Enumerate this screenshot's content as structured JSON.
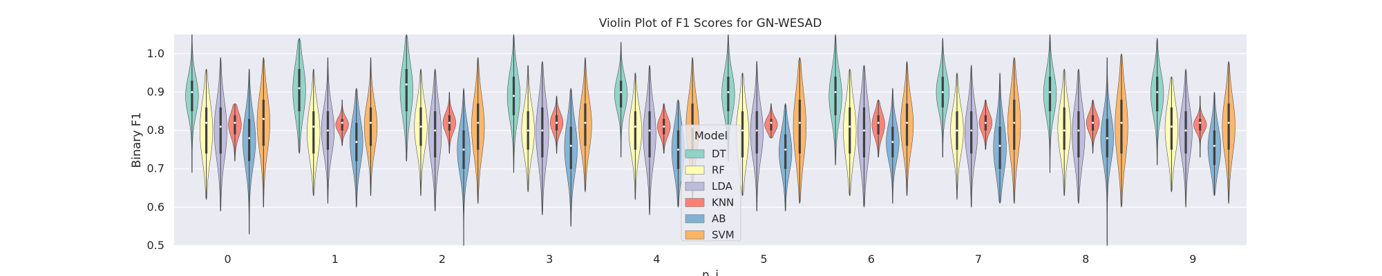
{
  "chart_data": {
    "type": "violin",
    "title": "Violin Plot of F1 Scores for GN-WESAD",
    "xlabel": "n_i",
    "ylabel": "Binary F1",
    "ylim": [
      0.5,
      1.05
    ],
    "yticks": [
      0.5,
      0.6,
      0.7,
      0.8,
      0.9,
      1.0
    ],
    "yticklabels": [
      "0.5",
      "0.6",
      "0.7",
      "0.8",
      "0.9",
      "1.0"
    ],
    "categories": [
      "0",
      "1",
      "2",
      "3",
      "4",
      "5",
      "6",
      "7",
      "8",
      "9"
    ],
    "grid": true,
    "legend": {
      "title": "Model",
      "placement": "center"
    },
    "series": [
      {
        "name": "DT",
        "color": "#8dd3c7",
        "values": [
          {
            "min": 0.69,
            "q1": 0.85,
            "median": 0.9,
            "q3": 0.93,
            "max": 1.05
          },
          {
            "min": 0.74,
            "q1": 0.85,
            "median": 0.91,
            "q3": 0.96,
            "max": 1.04
          },
          {
            "min": 0.72,
            "q1": 0.85,
            "median": 0.92,
            "q3": 0.96,
            "max": 1.05
          },
          {
            "min": 0.69,
            "q1": 0.84,
            "median": 0.89,
            "q3": 0.94,
            "max": 1.05
          },
          {
            "min": 0.73,
            "q1": 0.86,
            "median": 0.9,
            "q3": 0.93,
            "max": 1.03
          },
          {
            "min": 0.72,
            "q1": 0.85,
            "median": 0.9,
            "q3": 0.94,
            "max": 1.05
          },
          {
            "min": 0.71,
            "q1": 0.84,
            "median": 0.9,
            "q3": 0.94,
            "max": 1.05
          },
          {
            "min": 0.73,
            "q1": 0.86,
            "median": 0.9,
            "q3": 0.94,
            "max": 1.04
          },
          {
            "min": 0.69,
            "q1": 0.85,
            "median": 0.9,
            "q3": 0.94,
            "max": 1.05
          },
          {
            "min": 0.71,
            "q1": 0.85,
            "median": 0.9,
            "q3": 0.94,
            "max": 1.04
          }
        ]
      },
      {
        "name": "RF",
        "color": "#ffffb3",
        "values": [
          {
            "min": 0.62,
            "q1": 0.74,
            "median": 0.82,
            "q3": 0.86,
            "max": 0.96
          },
          {
            "min": 0.63,
            "q1": 0.74,
            "median": 0.81,
            "q3": 0.85,
            "max": 0.96
          },
          {
            "min": 0.63,
            "q1": 0.76,
            "median": 0.81,
            "q3": 0.86,
            "max": 0.96
          },
          {
            "min": 0.64,
            "q1": 0.75,
            "median": 0.8,
            "q3": 0.85,
            "max": 0.97
          },
          {
            "min": 0.62,
            "q1": 0.75,
            "median": 0.81,
            "q3": 0.85,
            "max": 0.95
          },
          {
            "min": 0.63,
            "q1": 0.73,
            "median": 0.8,
            "q3": 0.85,
            "max": 0.95
          },
          {
            "min": 0.63,
            "q1": 0.74,
            "median": 0.81,
            "q3": 0.86,
            "max": 0.96
          },
          {
            "min": 0.62,
            "q1": 0.75,
            "median": 0.8,
            "q3": 0.85,
            "max": 0.95
          },
          {
            "min": 0.63,
            "q1": 0.75,
            "median": 0.8,
            "q3": 0.86,
            "max": 0.96
          },
          {
            "min": 0.64,
            "q1": 0.75,
            "median": 0.81,
            "q3": 0.86,
            "max": 0.94
          }
        ]
      },
      {
        "name": "LDA",
        "color": "#bebada",
        "values": [
          {
            "min": 0.59,
            "q1": 0.74,
            "median": 0.81,
            "q3": 0.86,
            "max": 0.99
          },
          {
            "min": 0.61,
            "q1": 0.75,
            "median": 0.8,
            "q3": 0.85,
            "max": 0.99
          },
          {
            "min": 0.59,
            "q1": 0.73,
            "median": 0.8,
            "q3": 0.85,
            "max": 0.96
          },
          {
            "min": 0.58,
            "q1": 0.73,
            "median": 0.8,
            "q3": 0.86,
            "max": 0.98
          },
          {
            "min": 0.58,
            "q1": 0.73,
            "median": 0.8,
            "q3": 0.85,
            "max": 0.97
          },
          {
            "min": 0.59,
            "q1": 0.74,
            "median": 0.8,
            "q3": 0.85,
            "max": 0.98
          },
          {
            "min": 0.6,
            "q1": 0.73,
            "median": 0.8,
            "q3": 0.86,
            "max": 0.97
          },
          {
            "min": 0.6,
            "q1": 0.74,
            "median": 0.8,
            "q3": 0.85,
            "max": 0.97
          },
          {
            "min": 0.61,
            "q1": 0.73,
            "median": 0.8,
            "q3": 0.85,
            "max": 0.96
          },
          {
            "min": 0.6,
            "q1": 0.74,
            "median": 0.8,
            "q3": 0.85,
            "max": 0.96
          }
        ]
      },
      {
        "name": "KNN",
        "color": "#fb8072",
        "values": [
          {
            "min": 0.72,
            "q1": 0.79,
            "median": 0.82,
            "q3": 0.84,
            "max": 0.87
          },
          {
            "min": 0.76,
            "q1": 0.8,
            "median": 0.82,
            "q3": 0.83,
            "max": 0.88
          },
          {
            "min": 0.74,
            "q1": 0.8,
            "median": 0.82,
            "q3": 0.84,
            "max": 0.9
          },
          {
            "min": 0.74,
            "q1": 0.8,
            "median": 0.82,
            "q3": 0.84,
            "max": 0.89
          },
          {
            "min": 0.74,
            "q1": 0.79,
            "median": 0.81,
            "q3": 0.83,
            "max": 0.87
          },
          {
            "min": 0.78,
            "q1": 0.8,
            "median": 0.82,
            "q3": 0.83,
            "max": 0.87
          },
          {
            "min": 0.73,
            "q1": 0.79,
            "median": 0.82,
            "q3": 0.84,
            "max": 0.88
          },
          {
            "min": 0.75,
            "q1": 0.8,
            "median": 0.82,
            "q3": 0.84,
            "max": 0.88
          },
          {
            "min": 0.74,
            "q1": 0.8,
            "median": 0.82,
            "q3": 0.84,
            "max": 0.88
          },
          {
            "min": 0.73,
            "q1": 0.8,
            "median": 0.82,
            "q3": 0.83,
            "max": 0.89
          }
        ]
      },
      {
        "name": "AB",
        "color": "#80b1d3",
        "values": [
          {
            "min": 0.53,
            "q1": 0.72,
            "median": 0.78,
            "q3": 0.83,
            "max": 0.96
          },
          {
            "min": 0.6,
            "q1": 0.72,
            "median": 0.77,
            "q3": 0.82,
            "max": 0.91
          },
          {
            "min": 0.5,
            "q1": 0.7,
            "median": 0.75,
            "q3": 0.8,
            "max": 0.91
          },
          {
            "min": 0.55,
            "q1": 0.7,
            "median": 0.76,
            "q3": 0.81,
            "max": 0.91
          },
          {
            "min": 0.6,
            "q1": 0.7,
            "median": 0.75,
            "q3": 0.8,
            "max": 0.88
          },
          {
            "min": 0.59,
            "q1": 0.7,
            "median": 0.75,
            "q3": 0.79,
            "max": 0.87
          },
          {
            "min": 0.61,
            "q1": 0.73,
            "median": 0.77,
            "q3": 0.81,
            "max": 0.91
          },
          {
            "min": 0.61,
            "q1": 0.7,
            "median": 0.76,
            "q3": 0.81,
            "max": 0.95
          },
          {
            "min": 0.5,
            "q1": 0.73,
            "median": 0.78,
            "q3": 0.83,
            "max": 0.99
          },
          {
            "min": 0.63,
            "q1": 0.71,
            "median": 0.76,
            "q3": 0.8,
            "max": 0.9
          }
        ]
      },
      {
        "name": "SVM",
        "color": "#fdb462",
        "values": [
          {
            "min": 0.6,
            "q1": 0.76,
            "median": 0.83,
            "q3": 0.88,
            "max": 0.99
          },
          {
            "min": 0.63,
            "q1": 0.76,
            "median": 0.82,
            "q3": 0.86,
            "max": 0.99
          },
          {
            "min": 0.61,
            "q1": 0.75,
            "median": 0.82,
            "q3": 0.87,
            "max": 0.99
          },
          {
            "min": 0.64,
            "q1": 0.76,
            "median": 0.82,
            "q3": 0.87,
            "max": 0.99
          },
          {
            "min": 0.62,
            "q1": 0.75,
            "median": 0.81,
            "q3": 0.87,
            "max": 0.99
          },
          {
            "min": 0.61,
            "q1": 0.74,
            "median": 0.82,
            "q3": 0.88,
            "max": 0.99
          },
          {
            "min": 0.63,
            "q1": 0.76,
            "median": 0.82,
            "q3": 0.87,
            "max": 0.98
          },
          {
            "min": 0.61,
            "q1": 0.75,
            "median": 0.82,
            "q3": 0.88,
            "max": 0.99
          },
          {
            "min": 0.6,
            "q1": 0.74,
            "median": 0.82,
            "q3": 0.88,
            "max": 1.0
          },
          {
            "min": 0.61,
            "q1": 0.75,
            "median": 0.82,
            "q3": 0.87,
            "max": 0.98
          }
        ]
      }
    ]
  },
  "colors": {
    "plot_background": "#eaeaf2",
    "grid": "#ffffff",
    "inner_box": "#3f3f3f"
  }
}
